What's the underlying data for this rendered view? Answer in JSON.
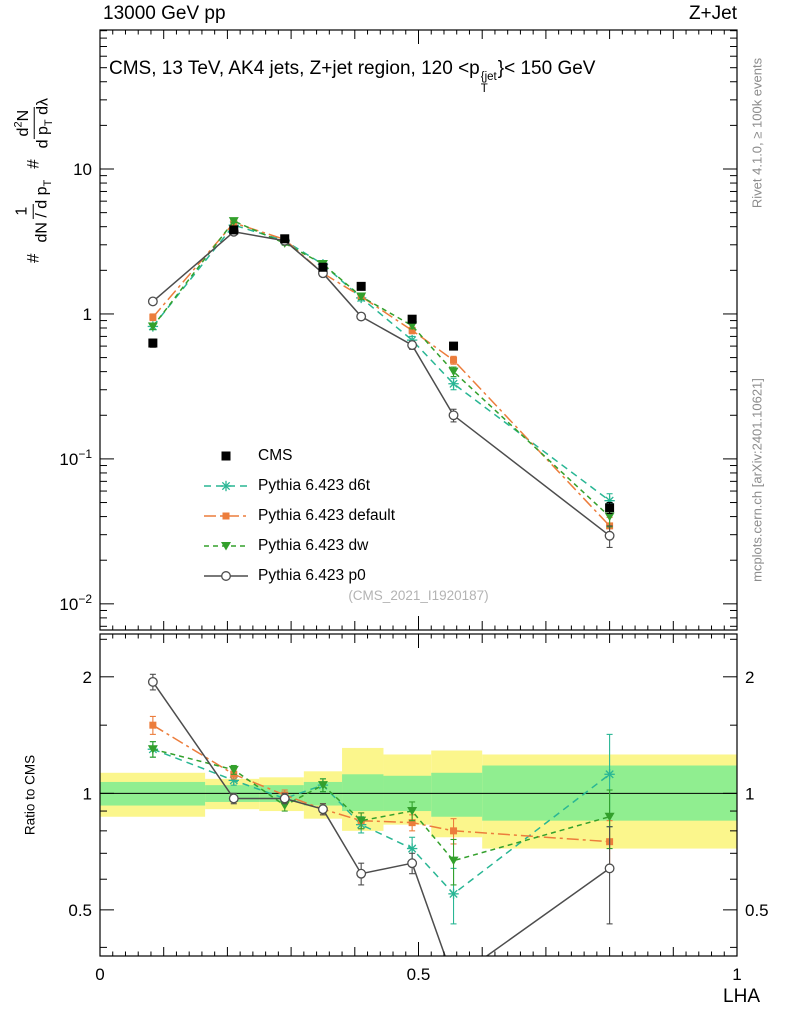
{
  "header": {
    "left": "13000 GeV pp",
    "right": "Z+Jet"
  },
  "title": {
    "a": "CMS, 13 TeV, AK4 jets, Z+jet region, 120 <",
    "p": "p",
    "sup": "{jet",
    "sub": "T",
    "b": "}< 150 GeV"
  },
  "side": {
    "top": "Rivet 4.1.0, ≥ 100k events",
    "bottom": "mcplots.cern.ch [arXiv:2401.10621]"
  },
  "watermark": "(CMS_2021_I1920187)",
  "ylabel": {
    "prefix1": "#",
    "f1num": "1",
    "f1den_a": "dN / d p",
    "f1den_sub": "T",
    "prefix2": "#",
    "f2num_a": "d",
    "f2num_sup": "2",
    "f2num_b": "N",
    "f2den_a": "d p",
    "f2den_sub": "T",
    "f2den_b": " dλ"
  },
  "chart_data": {
    "type": "line",
    "title": "CMS, 13 TeV, AK4 jets, Z+jet region, 120 < pT{jet} < 150 GeV",
    "xlabel": "LHA",
    "ratio_ylabel": "Ratio to CMS",
    "axes": {
      "xmin": 0,
      "xmax": 1,
      "x_ticks": [
        0,
        0.5,
        1
      ],
      "main_yscale": "log",
      "main_ymin": 0.0066,
      "main_ymax": 91,
      "main_y_ticks": [
        10,
        1,
        0.1,
        0.01
      ],
      "ratio_yscale": "log",
      "ratio_ymin": 0.38,
      "ratio_ymax": 2.58,
      "ratio_y_ticks": [
        2,
        1,
        0.5
      ],
      "grid": false,
      "legend_position": "center-left"
    },
    "x": [
      0.083,
      0.21,
      0.29,
      0.35,
      0.41,
      0.49,
      0.555,
      0.8
    ],
    "series": [
      {
        "id": "cms",
        "label": "CMS",
        "color": "#000000",
        "marker": "square-big",
        "line": false,
        "in_ratio": false,
        "values": [
          0.63,
          3.8,
          3.3,
          2.1,
          1.55,
          0.92,
          0.6,
          0.046
        ],
        "err_main": [
          0.04,
          0.12,
          0.1,
          0.07,
          0.06,
          0.04,
          0.03,
          0.004
        ]
      },
      {
        "id": "d6t",
        "label": "Pythia 6.423 d6t",
        "color": "#29b694",
        "marker": "star",
        "line": true,
        "dash": "7,5",
        "in_ratio": true,
        "values": [
          0.82,
          4.1,
          3.2,
          2.2,
          1.29,
          0.66,
          0.33,
          0.0515
        ],
        "err_main": [
          0.04,
          0.1,
          0.09,
          0.08,
          0.06,
          0.04,
          0.03,
          0.006
        ],
        "ratio": [
          1.3,
          1.08,
          0.97,
          1.05,
          0.83,
          0.72,
          0.55,
          1.12
        ],
        "err_ratio": [
          0.06,
          0.03,
          0.03,
          0.04,
          0.04,
          0.05,
          0.09,
          0.3
        ]
      },
      {
        "id": "default",
        "label": "Pythia 6.423 default",
        "color": "#ec7d3c",
        "marker": "square",
        "line": true,
        "dash": "12,4,3,4",
        "in_ratio": true,
        "values": [
          0.95,
          4.25,
          3.27,
          1.91,
          1.32,
          0.77,
          0.48,
          0.0345
        ],
        "err_main": [
          0.05,
          0.1,
          0.09,
          0.07,
          0.06,
          0.04,
          0.03,
          0.005
        ],
        "ratio": [
          1.5,
          1.12,
          0.99,
          0.91,
          0.85,
          0.84,
          0.8,
          0.75
        ],
        "err_ratio": [
          0.08,
          0.03,
          0.03,
          0.03,
          0.04,
          0.04,
          0.06,
          0.1
        ]
      },
      {
        "id": "dw",
        "label": "Pythia 6.423 dw",
        "color": "#33a02c",
        "marker": "triangle-down",
        "line": true,
        "dash": "5,4",
        "in_ratio": true,
        "values": [
          0.82,
          4.37,
          3.07,
          2.21,
          1.32,
          0.83,
          0.4,
          0.04
        ],
        "err_main": [
          0.04,
          0.1,
          0.09,
          0.08,
          0.06,
          0.04,
          0.03,
          0.006
        ],
        "ratio": [
          1.3,
          1.15,
          0.93,
          1.05,
          0.85,
          0.9,
          0.67,
          0.87
        ],
        "err_ratio": [
          0.06,
          0.03,
          0.03,
          0.04,
          0.04,
          0.05,
          0.09,
          0.15
        ]
      },
      {
        "id": "p0",
        "label": "Pythia 6.423 p0",
        "color": "#4d4d4d",
        "marker": "circle-open",
        "line": true,
        "dash": "",
        "in_ratio": true,
        "values": [
          1.22,
          3.69,
          3.2,
          1.91,
          0.96,
          0.61,
          0.2,
          0.0295
        ],
        "err_main": [
          0.06,
          0.09,
          0.09,
          0.07,
          0.05,
          0.04,
          0.02,
          0.005
        ],
        "ratio": [
          1.94,
          0.97,
          0.97,
          0.91,
          0.62,
          0.66,
          0.33,
          0.64
        ],
        "err_ratio": [
          0.09,
          0.03,
          0.03,
          0.03,
          0.04,
          0.04,
          0.05,
          0.18
        ]
      }
    ],
    "ratio_bands": {
      "bin_edges": [
        0.0,
        0.165,
        0.25,
        0.32,
        0.38,
        0.445,
        0.52,
        0.6,
        1.0
      ],
      "yellow_lo": [
        0.87,
        0.91,
        0.9,
        0.86,
        0.8,
        0.83,
        0.77,
        0.72
      ],
      "yellow_hi": [
        1.13,
        1.09,
        1.1,
        1.14,
        1.31,
        1.26,
        1.29,
        1.26
      ],
      "green_lo": [
        0.93,
        0.95,
        0.95,
        0.93,
        0.9,
        0.9,
        0.87,
        0.85
      ],
      "green_hi": [
        1.07,
        1.05,
        1.05,
        1.07,
        1.12,
        1.11,
        1.13,
        1.18
      ]
    },
    "colors": {
      "band_yellow": "#fbf68c",
      "band_green": "#90ee90",
      "frame": "#000000"
    }
  }
}
